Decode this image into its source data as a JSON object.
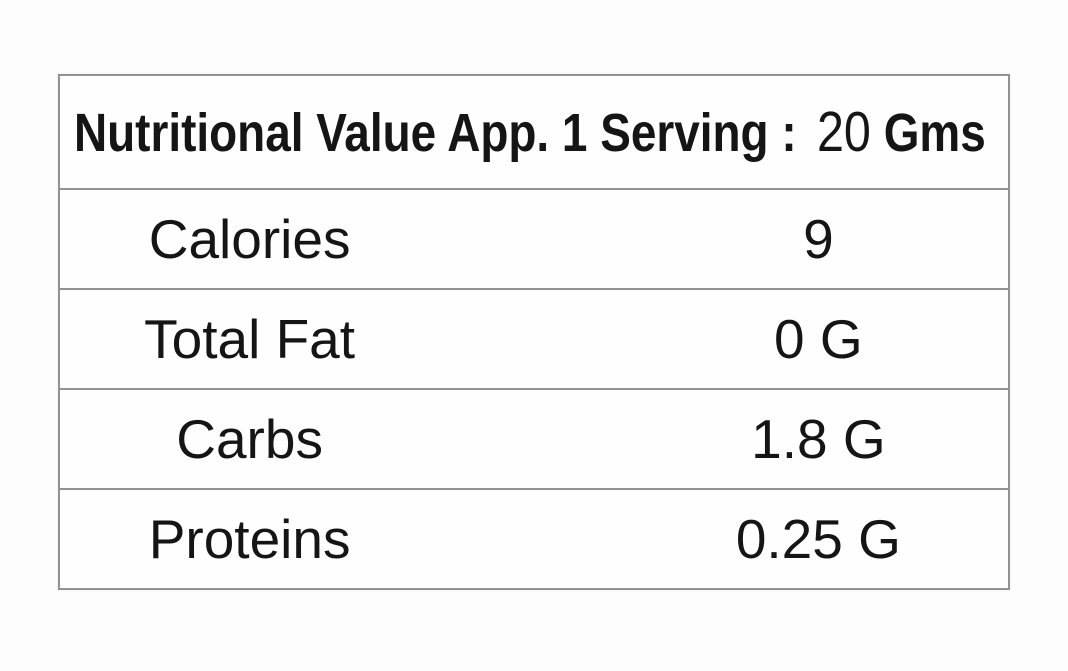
{
  "header": {
    "title": "Nutritional Value App. 1 Serving :",
    "serving_value": "20",
    "serving_unit": "Gms"
  },
  "rows": [
    {
      "label": "Calories",
      "value": "9"
    },
    {
      "label": "Total Fat",
      "value": "0 G"
    },
    {
      "label": "Carbs",
      "value": "1.8 G"
    },
    {
      "label": "Proteins",
      "value": "0.25 G"
    }
  ],
  "colors": {
    "border": "#929292",
    "text": "#151515",
    "background": "#fdfdfd"
  }
}
